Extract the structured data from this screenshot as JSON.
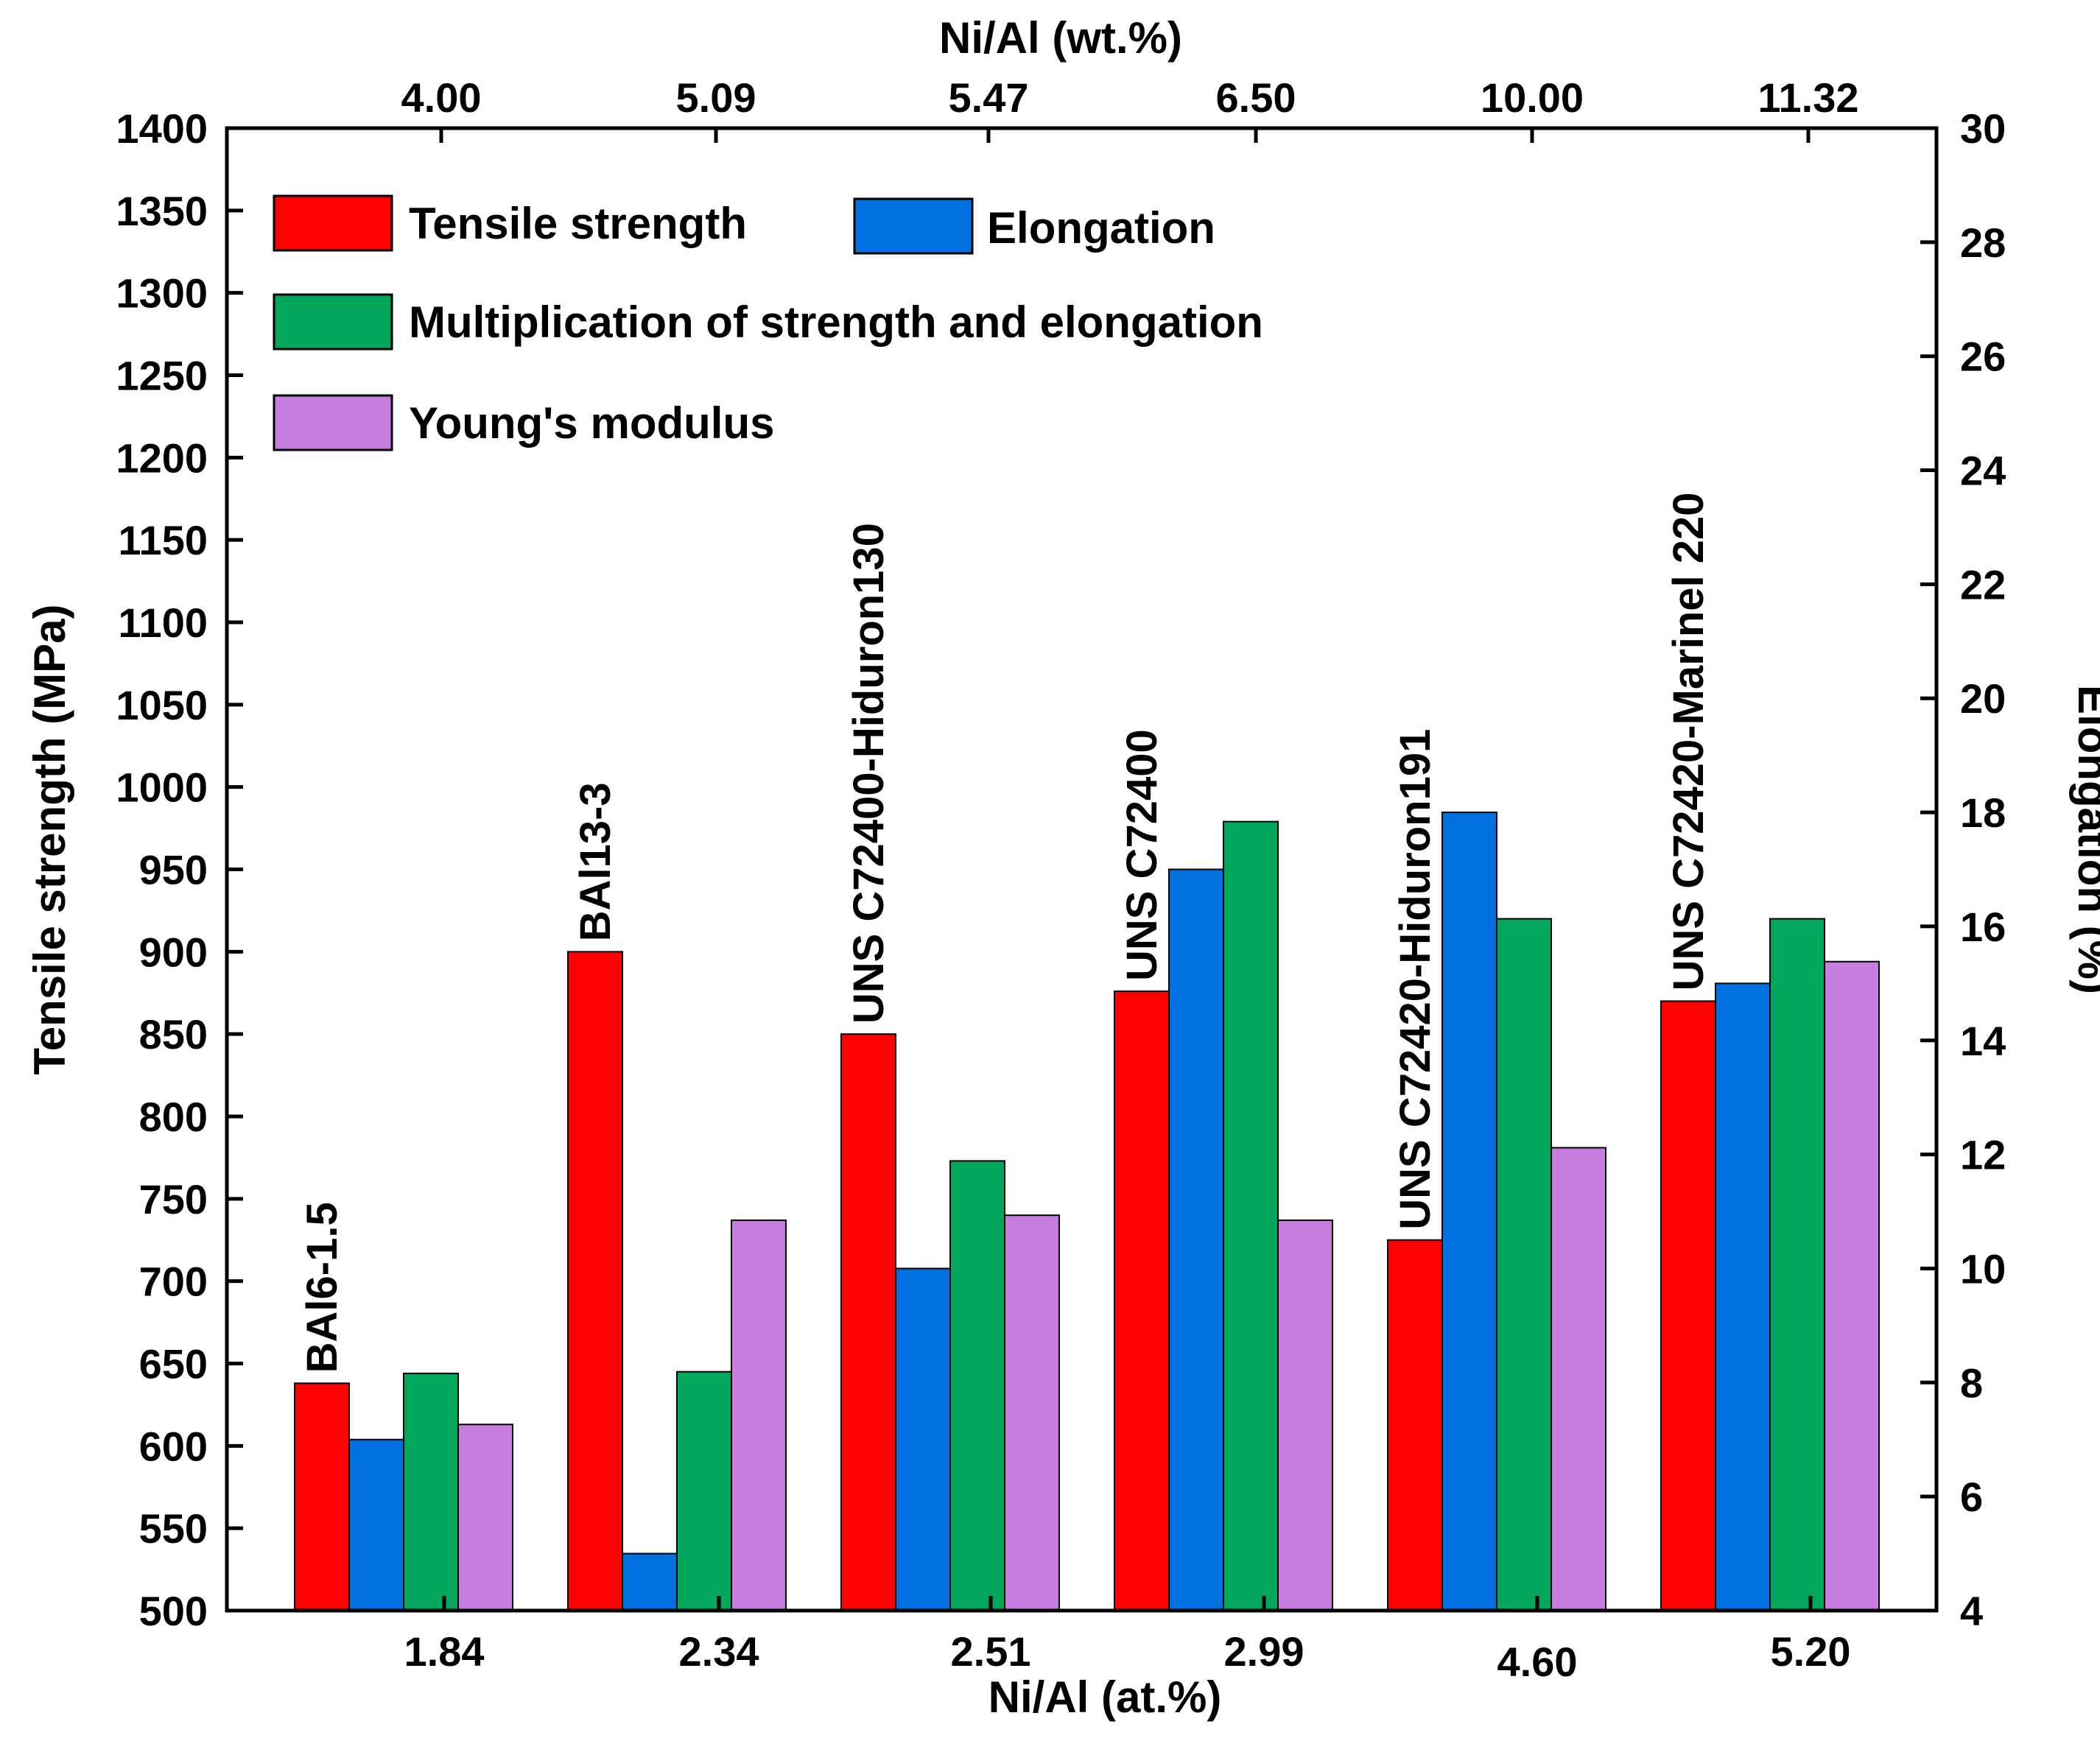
{
  "chart_data": {
    "type": "bar",
    "categories": [
      "1.84",
      "2.34",
      "2.51",
      "2.99",
      "4.60",
      "5.20"
    ],
    "top_categories": [
      "4.00",
      "5.09",
      "5.47",
      "6.50",
      "10.00",
      "11.32"
    ],
    "alloy_labels": [
      "BAl6-1.5",
      "BAl13-3",
      "UNS C72400-Hiduron130",
      "UNS C72400",
      "UNS C72420-Hiduron191",
      "UNS C72420-Marinel 220"
    ],
    "xlabel": "Ni/Al (at.%)",
    "top_xlabel": "Ni/Al (wt.%)",
    "ylabel": "Tensile strength (MPa)",
    "y2label": "Elongation (%)",
    "ylim": [
      500,
      1400
    ],
    "y2lim": [
      4,
      30
    ],
    "yticks": [
      500,
      550,
      600,
      650,
      700,
      750,
      800,
      850,
      900,
      950,
      1000,
      1050,
      1100,
      1150,
      1200,
      1250,
      1300,
      1350,
      1400
    ],
    "y2ticks": [
      4,
      6,
      8,
      10,
      12,
      14,
      16,
      18,
      20,
      22,
      24,
      26,
      28,
      30
    ],
    "series": [
      {
        "name": "Tensile strength",
        "color": "#ff0000",
        "axis": "left",
        "values": [
          638,
          900,
          850,
          876,
          725,
          870
        ]
      },
      {
        "name": "Elongation",
        "color": "#0070e0",
        "axis": "right",
        "values": [
          7.0,
          5.0,
          10.0,
          17.0,
          18.0,
          15.0
        ]
      },
      {
        "name": "Multiplication of strength and elongation",
        "color": "#00a65a",
        "axis": "left",
        "values": [
          644,
          645,
          773,
          979,
          920,
          920
        ]
      },
      {
        "name": "Young's modulus",
        "color": "#c77ddf",
        "axis": "left",
        "values": [
          613,
          737,
          740,
          737,
          781,
          894
        ]
      }
    ]
  }
}
